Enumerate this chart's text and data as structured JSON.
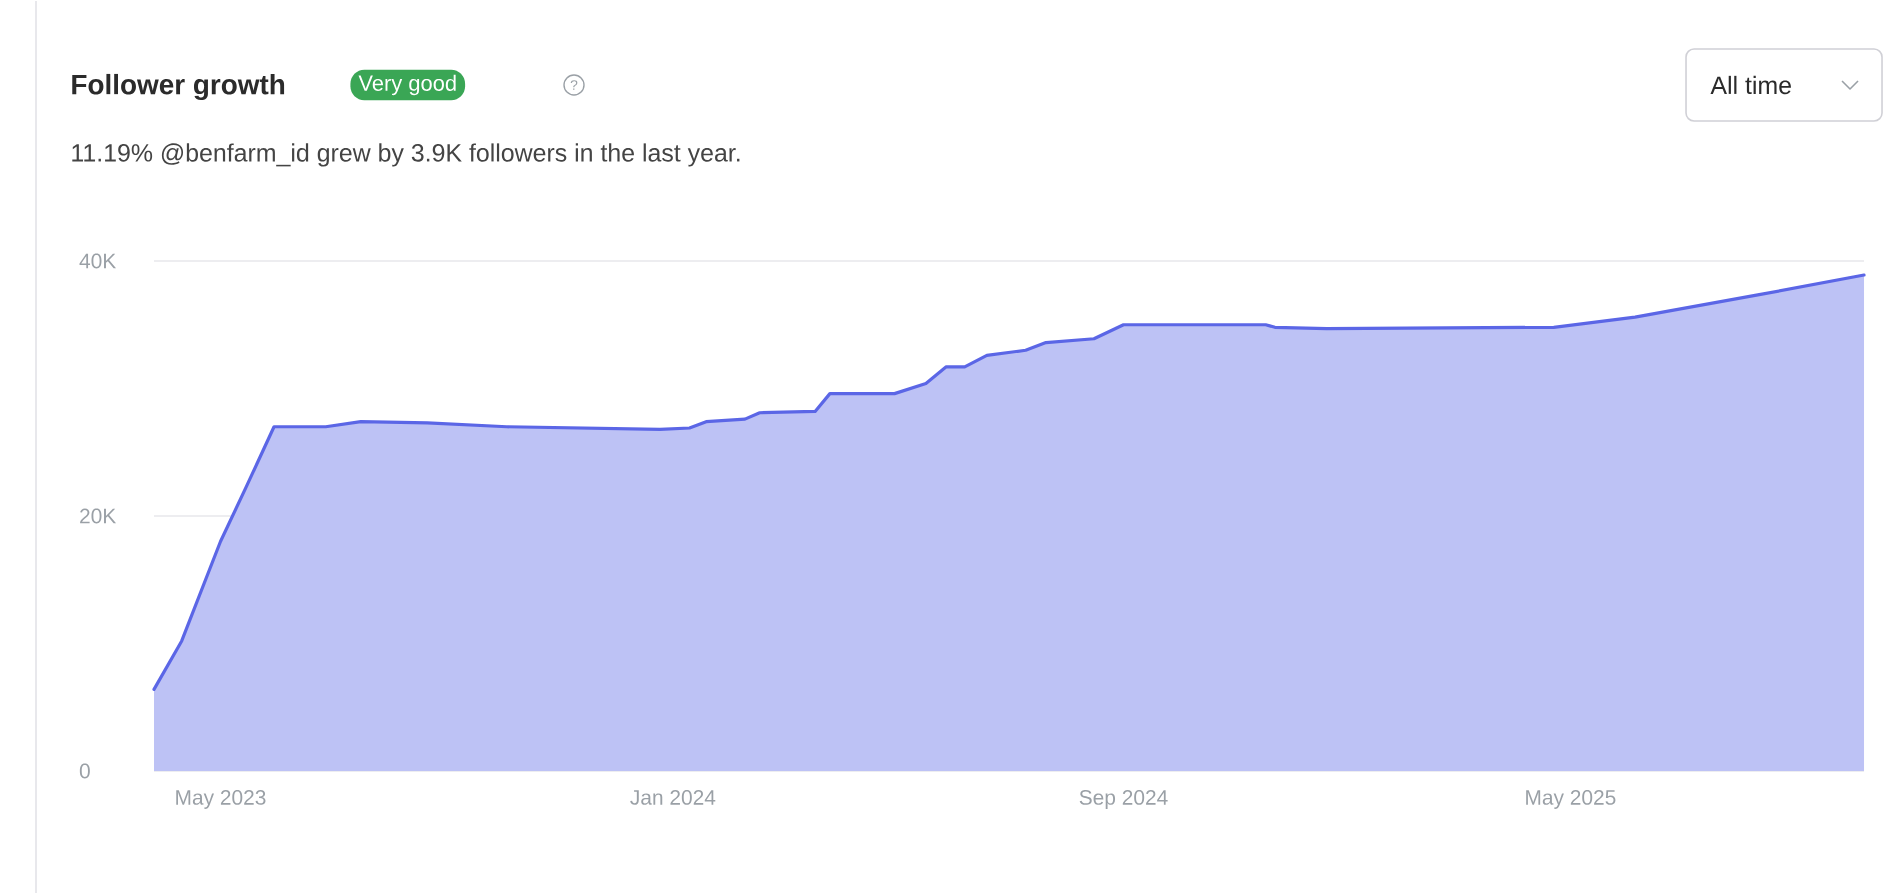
{
  "chart_data": {
    "type": "area",
    "title": "Follower growth",
    "subtitle": "11.19% @benfarm_id grew by 3.9K followers in the last year.",
    "annotations": [
      "Very good",
      "?",
      "All time"
    ],
    "series": [
      {
        "color": "#5b66e6",
        "x": [
          "2023-03-26",
          "2023-04-10",
          "2023-05-01",
          "2023-05-15",
          "2023-05-30",
          "2023-06-27",
          "2023-07-16",
          "2023-08-21",
          "2023-10-03",
          "2023-12-25",
          "2024-01-10",
          "2024-01-19",
          "2024-02-09",
          "2024-02-17",
          "2024-03-18",
          "2024-03-26",
          "2024-04-30",
          "2024-05-17",
          "2024-05-28",
          "2024-06-07",
          "2024-06-19",
          "2024-07-10",
          "2024-07-21",
          "2024-08-16",
          "2024-09-01",
          "2024-09-29",
          "2024-11-17",
          "2024-11-22",
          "2024-12-20",
          "2025-04-22",
          "2025-06-05",
          "2025-08-09",
          "2025-10-07"
        ],
        "values": [
          6400,
          10200,
          18000,
          22300,
          27000,
          27000,
          27400,
          27300,
          27000,
          26800,
          26900,
          27400,
          27600,
          28100,
          28200,
          29600,
          29600,
          30400,
          31700,
          31700,
          32600,
          33000,
          33600,
          33900,
          35000,
          35000,
          35000,
          34800,
          34700,
          34800,
          35600,
          37300,
          38900
        ]
      }
    ],
    "xlim": [
      "2023-03-26",
      "2025-10-07"
    ],
    "xticks": [
      {
        "value": "2023-05-01",
        "label": "May 2023"
      },
      {
        "value": "2024-01-01",
        "label": "Jan 2024"
      },
      {
        "value": "2024-09-01",
        "label": "Sep 2024"
      },
      {
        "value": "2025-05-01",
        "label": "May 2025"
      }
    ],
    "ylim": [
      0,
      40000
    ],
    "yticks": [
      0,
      {
        "value": 20000,
        "label": "20K"
      },
      {
        "value": 40000,
        "label": "40K"
      }
    ],
    "grid": "y"
  }
}
